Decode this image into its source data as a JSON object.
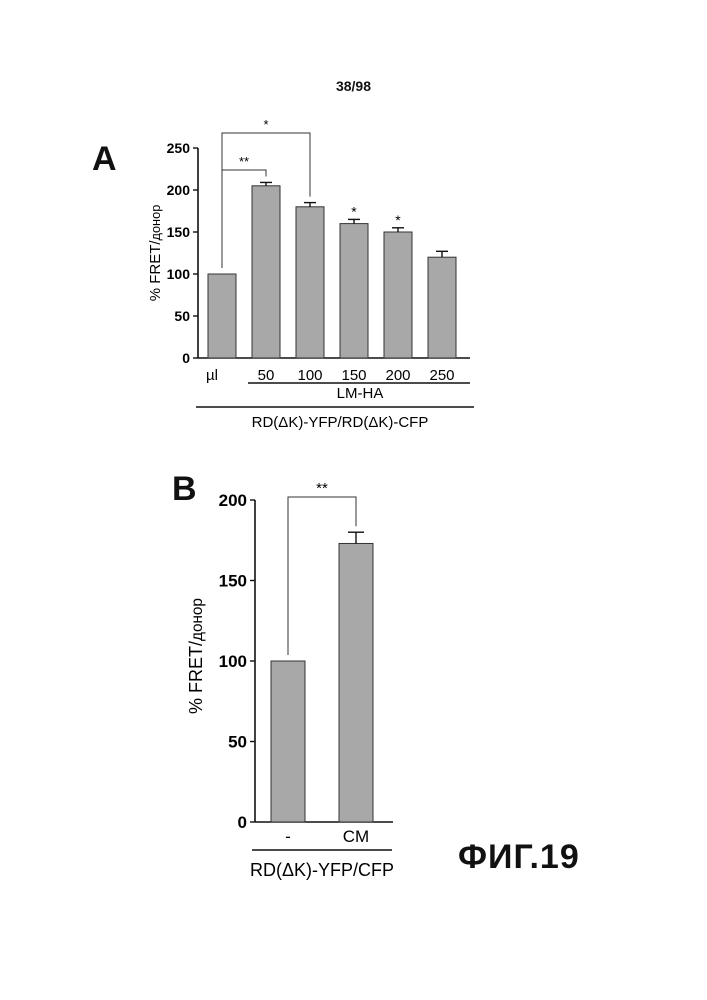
{
  "page_number": "38/98",
  "figure_label": "ФИГ.19",
  "chart_data": [
    {
      "panel": "A",
      "type": "bar",
      "categories": [
        "µl",
        "50",
        "100",
        "150",
        "200",
        "250"
      ],
      "values": [
        100,
        205,
        180,
        160,
        150,
        120
      ],
      "errors": [
        0,
        4,
        5,
        5,
        5,
        7
      ],
      "significance": [
        "",
        "",
        "",
        "*",
        "*",
        ""
      ],
      "brackets": [
        {
          "from": 0,
          "to": 1,
          "label": "**"
        },
        {
          "from": 0,
          "to": 2,
          "label": "*"
        }
      ],
      "ylabel_main": "% FRET/",
      "ylabel_sub": "донор",
      "ylim": [
        0,
        250
      ],
      "yticks": [
        "0",
        "50",
        "100",
        "150",
        "200",
        "250"
      ],
      "group_label": "LM-HA",
      "xlabel": "RD(ΔK)-YFP/RD(ΔK)-CFP"
    },
    {
      "panel": "B",
      "type": "bar",
      "categories": [
        "-",
        "CM"
      ],
      "values": [
        100,
        173
      ],
      "errors": [
        0,
        7
      ],
      "brackets": [
        {
          "from": 0,
          "to": 1,
          "label": "**"
        }
      ],
      "ylabel_main": "% FRET/",
      "ylabel_sub": "донор",
      "ylim": [
        0,
        200
      ],
      "yticks": [
        "0",
        "50",
        "100",
        "150",
        "200"
      ],
      "xlabel": "RD(ΔK)-YFP/CFP"
    }
  ]
}
